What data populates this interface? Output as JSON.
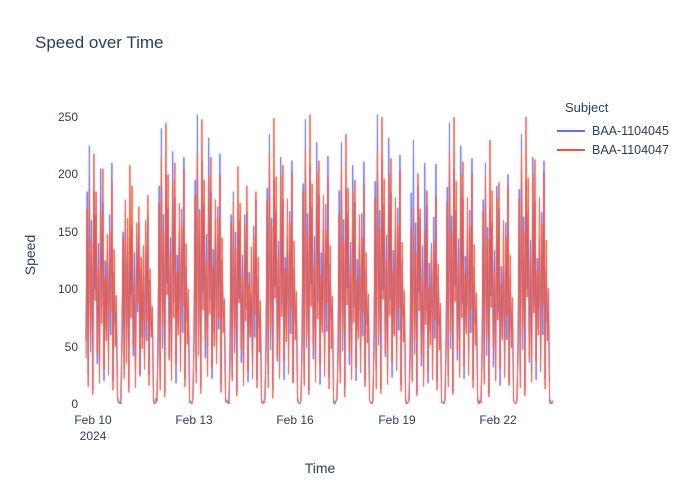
{
  "title": {
    "text": "Speed over Time",
    "color": "#2a3f5f"
  },
  "axes": {
    "x": {
      "title": "Time",
      "ticks": [
        "Feb 10",
        "Feb 13",
        "Feb 16",
        "Feb 19",
        "Feb 22"
      ],
      "year_line": "2024"
    },
    "y": {
      "title": "Speed",
      "ticks": [
        "0",
        "50",
        "100",
        "150",
        "200",
        "250"
      ]
    }
  },
  "legend": {
    "title": "Subject",
    "items": [
      {
        "label": "BAA-1104045",
        "color": "#636efa"
      },
      {
        "label": "BAA-1104047",
        "color": "#ef553b"
      }
    ]
  },
  "chart_data": {
    "type": "line",
    "title": "Speed over Time",
    "xlabel": "Time",
    "ylabel": "Speed",
    "x_range": [
      "2024-02-10",
      "2024-02-23"
    ],
    "x_tick_labels": [
      "Feb 10 2024",
      "Feb 13",
      "Feb 16",
      "Feb 19",
      "Feb 22"
    ],
    "ylim": [
      0,
      250
    ],
    "grid": false,
    "legend_position": "right",
    "legend_title": "Subject",
    "series": [
      {
        "name": "BAA-1104045",
        "color": "#636efa",
        "values": [
          55,
          185,
          25,
          225,
          45,
          160,
          12,
          185,
          100,
          165,
          35,
          140,
          28,
          205,
          85,
          175,
          20,
          125,
          65,
          135,
          40,
          165,
          60,
          210,
          20,
          115,
          70,
          80,
          3,
          1,
          2,
          0,
          62,
          150,
          30,
          168,
          50,
          145,
          15,
          128,
          95,
          155,
          42,
          132,
          25,
          148,
          80,
          158,
          24,
          118,
          58,
          112,
          35,
          150,
          55,
          165,
          25,
          108,
          65,
          75,
          2,
          0,
          1,
          3,
          58,
          190,
          22,
          240,
          48,
          165,
          10,
          200,
          105,
          170,
          38,
          145,
          30,
          220,
          88,
          180,
          18,
          130,
          68,
          150,
          42,
          170,
          62,
          215,
          22,
          120,
          72,
          85,
          1,
          2,
          0,
          4,
          60,
          195,
          28,
          252,
          52,
          170,
          14,
          212,
          98,
          175,
          40,
          148,
          26,
          232,
          90,
          185,
          22,
          135,
          62,
          162,
          38,
          172,
          65,
          218,
          18,
          125,
          75,
          82,
          2,
          1,
          3,
          0,
          54,
          165,
          24,
          185,
          44,
          150,
          11,
          145,
          92,
          160,
          36,
          130,
          24,
          165,
          82,
          168,
          19,
          115,
          60,
          95,
          34,
          155,
          58,
          178,
          21,
          110,
          66,
          78,
          3,
          0,
          2,
          1,
          57,
          188,
          26,
          235,
          47,
          162,
          13,
          195,
          102,
          168,
          37,
          142,
          29,
          215,
          86,
          178,
          21,
          128,
          66,
          145,
          41,
          168,
          61,
          212,
          19,
          118,
          71,
          83,
          2,
          1,
          0,
          3,
          59,
          192,
          23,
          248,
          49,
          166,
          12,
          208,
          104,
          172,
          39,
          146,
          31,
          228,
          89,
          182,
          17,
          132,
          69,
          158,
          43,
          174,
          63,
          216,
          23,
          122,
          73,
          86,
          1,
          0,
          2,
          4,
          56,
          186,
          27,
          228,
          46,
          161,
          14,
          188,
          101,
          166,
          34,
          141,
          27,
          208,
          84,
          176,
          20,
          126,
          64,
          138,
          39,
          166,
          59,
          211,
          20,
          116,
          69,
          81,
          3,
          1,
          0,
          2,
          61,
          194,
          29,
          252,
          51,
          169,
          13,
          212,
          99,
          174,
          41,
          147,
          25,
          232,
          91,
          184,
          23,
          134,
          61,
          162,
          37,
          171,
          64,
          217,
          17,
          124,
          74,
          84,
          2,
          0,
          1,
          3,
          53,
          184,
          21,
          230,
          43,
          158,
          10,
          190,
          97,
          163,
          33,
          138,
          23,
          210,
          81,
          173,
          18,
          123,
          63,
          140,
          36,
          163,
          57,
          209,
          19,
          113,
          68,
          79,
          1,
          2,
          0,
          3,
          58,
          189,
          24,
          245,
          48,
          164,
          11,
          205,
          103,
          169,
          38,
          144,
          28,
          225,
          87,
          179,
          22,
          129,
          67,
          155,
          42,
          169,
          62,
          214,
          21,
          119,
          70,
          85,
          3,
          0,
          2,
          1,
          52,
          178,
          20,
          210,
          42,
          154,
          9,
          170,
          94,
          158,
          32,
          134,
          22,
          190,
          80,
          170,
          16,
          120,
          59,
          120,
          33,
          158,
          56,
          200,
          18,
          111,
          64,
          77,
          2,
          1,
          0,
          3,
          57,
          187,
          25,
          235,
          47,
          163,
          12,
          195,
          100,
          167,
          36,
          143,
          27,
          215,
          85,
          177,
          21,
          127,
          65,
          145,
          40,
          167,
          60,
          212,
          22,
          117,
          71,
          82,
          1,
          0,
          2,
          3
        ]
      },
      {
        "name": "BAA-1104047",
        "color": "#ef553b",
        "values": [
          40,
          170,
          15,
          188,
          60,
          140,
          8,
          218,
          90,
          185,
          45,
          120,
          18,
          168,
          70,
          205,
          30,
          110,
          55,
          148,
          25,
          150,
          80,
          195,
          12,
          135,
          50,
          95,
          6,
          2,
          0,
          4,
          65,
          145,
          22,
          178,
          35,
          162,
          10,
          208,
          75,
          190,
          50,
          105,
          14,
          158,
          88,
          172,
          26,
          128,
          48,
          138,
          30,
          160,
          72,
          182,
          16,
          118,
          58,
          85,
          3,
          0,
          5,
          2,
          45,
          175,
          12,
          215,
          68,
          150,
          6,
          245,
          95,
          200,
          40,
          130,
          20,
          195,
          75,
          210,
          35,
          115,
          60,
          175,
          28,
          155,
          85,
          205,
          15,
          140,
          52,
          100,
          4,
          1,
          0,
          6,
          58,
          182,
          18,
          218,
          42,
          168,
          9,
          248,
          82,
          195,
          55,
          125,
          24,
          198,
          78,
          215,
          32,
          120,
          50,
          178,
          35,
          162,
          75,
          200,
          10,
          145,
          62,
          92,
          5,
          2,
          1,
          0,
          38,
          158,
          20,
          177,
          62,
          135,
          7,
          207,
          88,
          175,
          48,
          112,
          16,
          157,
          72,
          190,
          28,
          105,
          58,
          137,
          22,
          148,
          78,
          185,
          14,
          128,
          45,
          90,
          2,
          0,
          3,
          5,
          52,
          178,
          14,
          219,
          66,
          155,
          5,
          249,
          92,
          198,
          42,
          128,
          22,
          199,
          76,
          208,
          38,
          118,
          54,
          179,
          26,
          158,
          82,
          202,
          18,
          142,
          56,
          98,
          6,
          1,
          0,
          3,
          48,
          185,
          16,
          222,
          58,
          148,
          8,
          252,
          85,
          192,
          52,
          122,
          19,
          202,
          74,
          212,
          34,
          112,
          62,
          182,
          24,
          152,
          88,
          198,
          13,
          138,
          48,
          94,
          4,
          0,
          2,
          5,
          42,
          165,
          18,
          205,
          64,
          142,
          6,
          235,
          86,
          188,
          46,
          118,
          21,
          185,
          71,
          195,
          31,
          108,
          57,
          165,
          27,
          145,
          79,
          192,
          15,
          132,
          53,
          96,
          3,
          2,
          0,
          4,
          55,
          180,
          13,
          220,
          61,
          152,
          9,
          250,
          91,
          196,
          44,
          126,
          17,
          200,
          77,
          214,
          36,
          116,
          59,
          180,
          29,
          156,
          84,
          204,
          11,
          141,
          54,
          99,
          5,
          0,
          1,
          2,
          36,
          152,
          19,
          171,
          56,
          132,
          7,
          201,
          81,
          170,
          43,
          109,
          15,
          151,
          69,
          186,
          27,
          102,
          51,
          131,
          21,
          142,
          73,
          181,
          12,
          122,
          47,
          88,
          2,
          1,
          0,
          4,
          50,
          176,
          15,
          220,
          63,
          149,
          8,
          250,
          89,
          194,
          47,
          124,
          23,
          200,
          75,
          211,
          33,
          114,
          61,
          180,
          25,
          154,
          83,
          201,
          14,
          139,
          51,
          97,
          6,
          0,
          3,
          1,
          44,
          168,
          17,
          200,
          59,
          144,
          6,
          230,
          84,
          186,
          49,
          116,
          20,
          180,
          73,
          193,
          30,
          106,
          56,
          160,
          23,
          147,
          77,
          190,
          16,
          130,
          49,
          93,
          3,
          1,
          0,
          5,
          53,
          179,
          14,
          220,
          65,
          151,
          7,
          250,
          93,
          197,
          41,
          127,
          19,
          200,
          79,
          213,
          37,
          117,
          60,
          180,
          28,
          157,
          86,
          203,
          13,
          143,
          55,
          101,
          5,
          2,
          0,
          3
        ]
      }
    ]
  }
}
